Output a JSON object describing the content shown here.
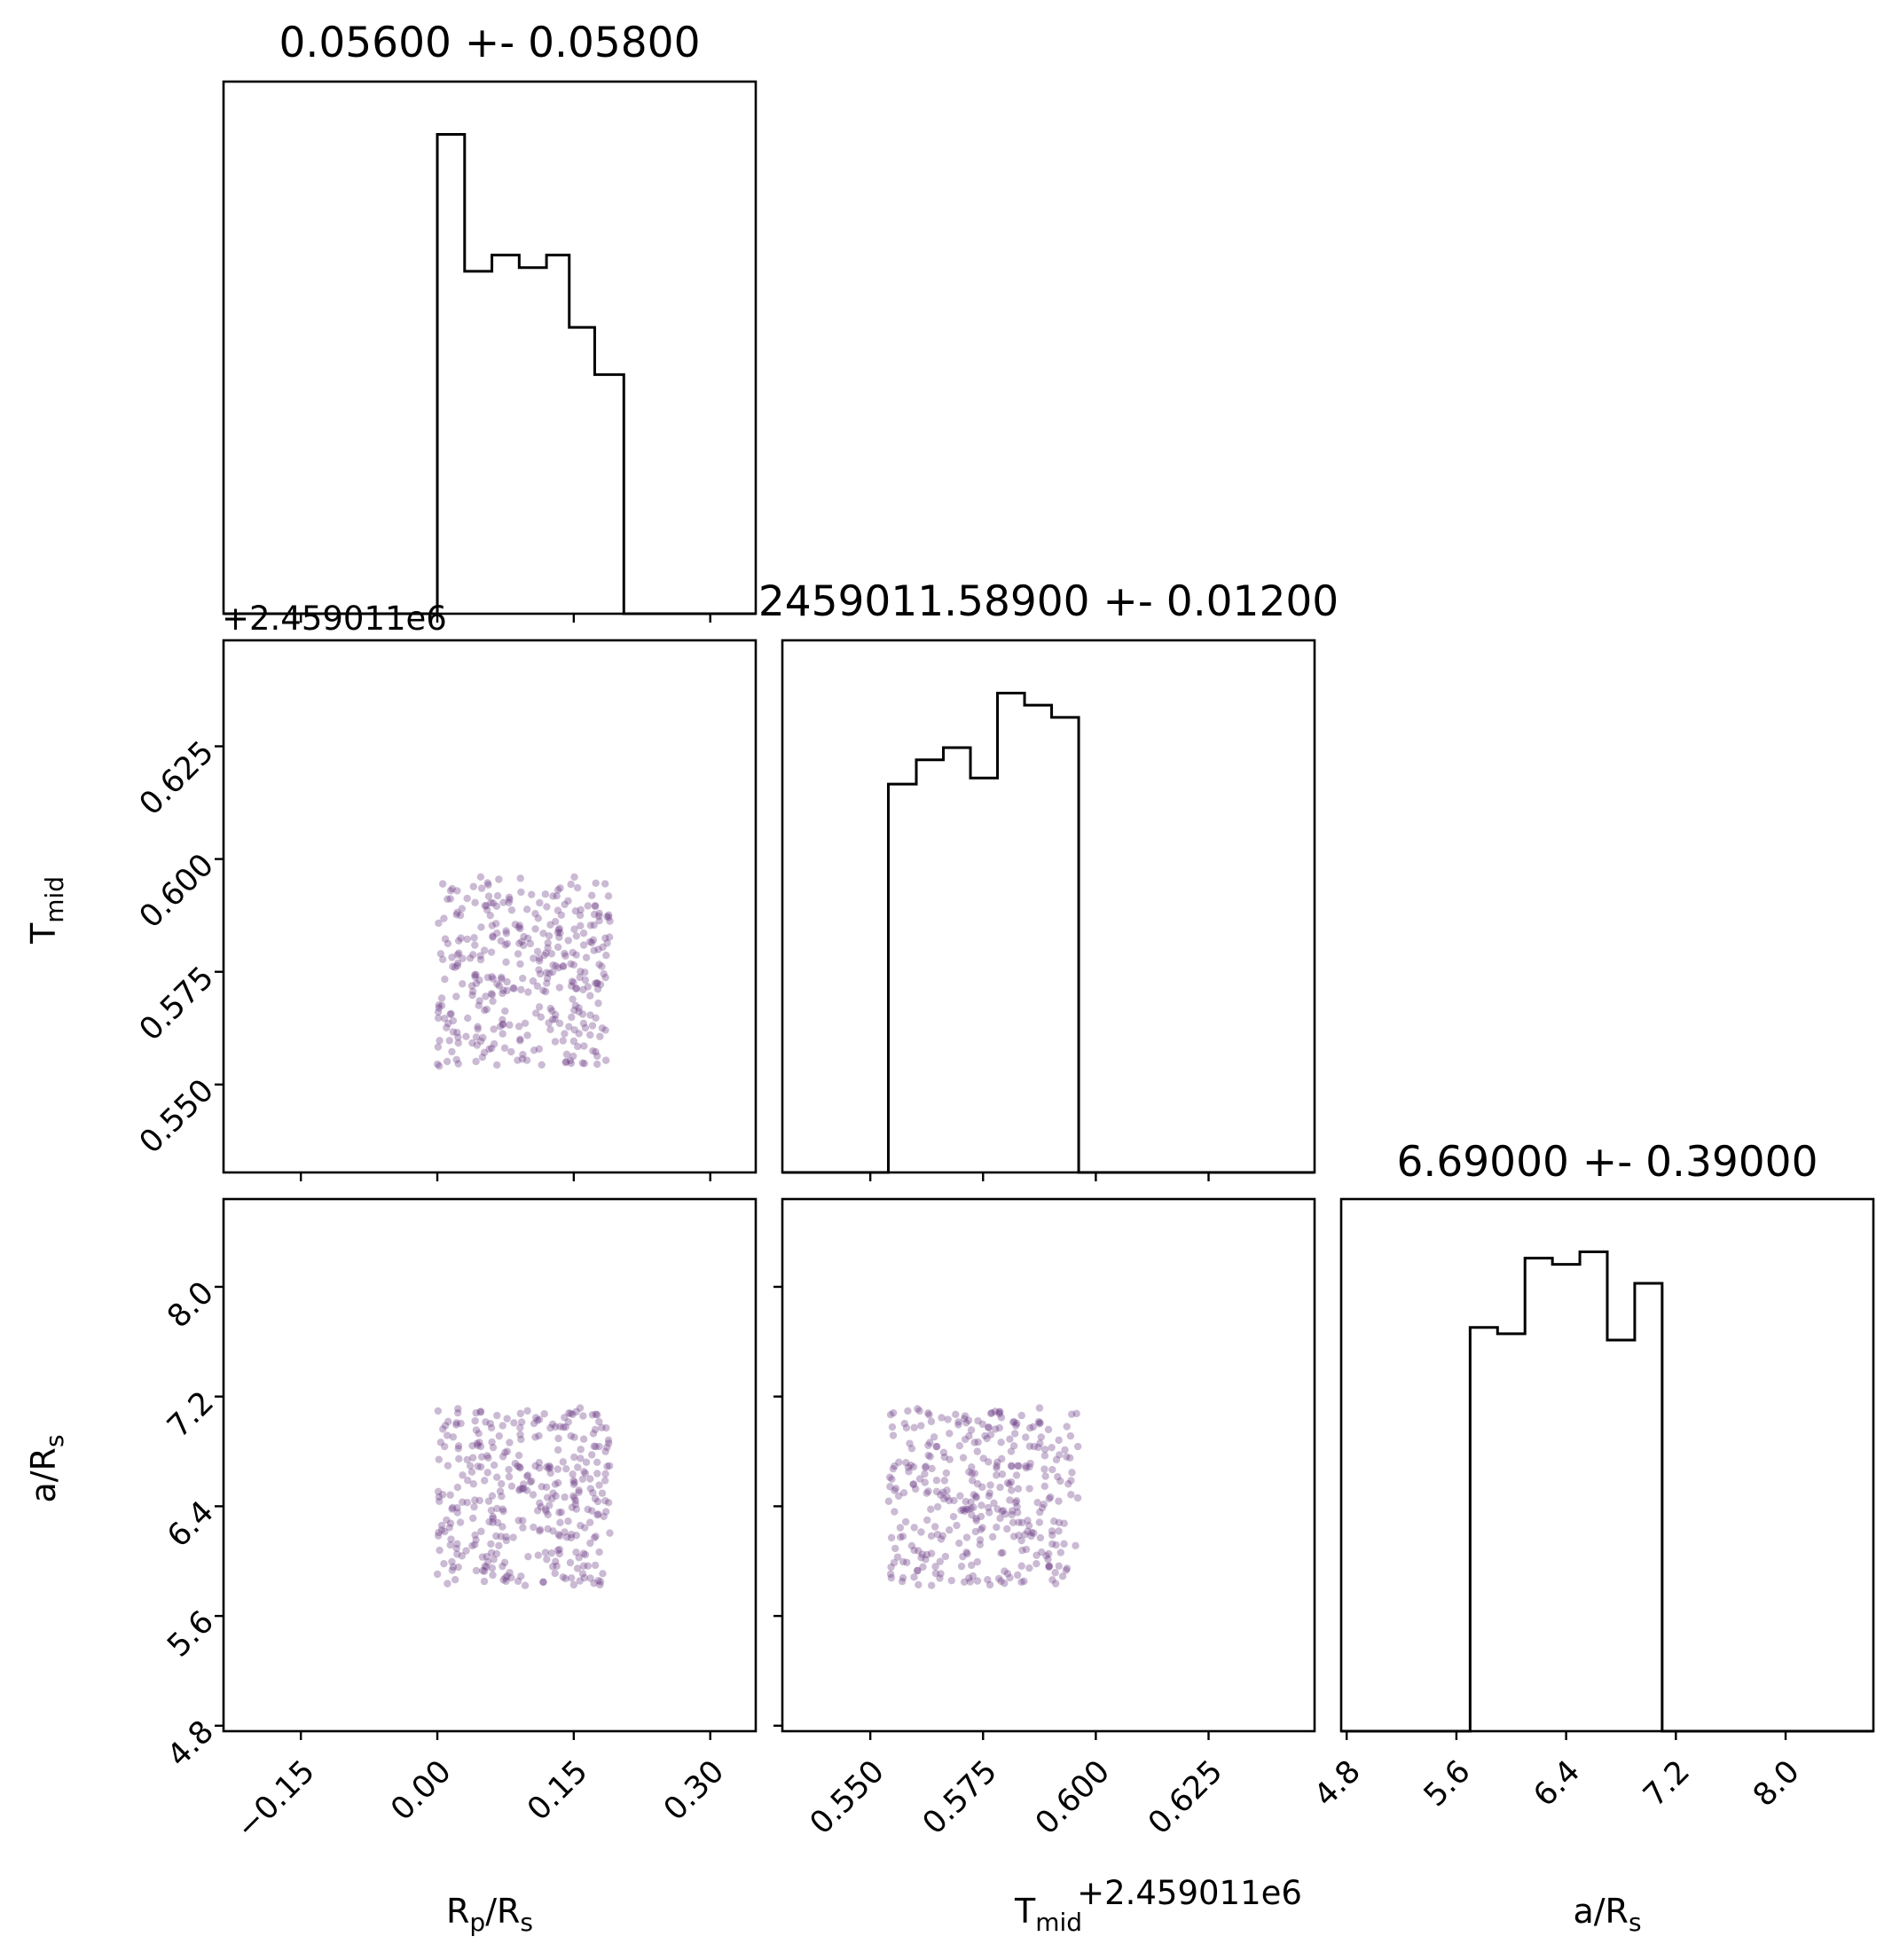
{
  "chart_data": {
    "type": "corner",
    "parameters": [
      {
        "key": "rprs",
        "label_main": "R",
        "label_sub1": "p",
        "label_mid": "/R",
        "label_sub2": "s",
        "title": "0.05600 +- 0.05800",
        "range": [
          -0.235,
          0.35
        ],
        "ticks": [
          -0.15,
          0.0,
          0.15,
          0.3
        ],
        "tick_labels": [
          "−0.15",
          "0.00",
          "0.15",
          "0.30"
        ],
        "offset_text": "",
        "hist_bins": [
          0.0,
          0.03,
          0.06,
          0.09,
          0.12,
          0.145,
          0.173,
          0.205
        ],
        "hist_counts": [
          38.5,
          27.5,
          28.8,
          27.8,
          28.8,
          23.0,
          19.2
        ]
      },
      {
        "key": "tmid",
        "label_main": "T",
        "label_sub1": "mid",
        "label_mid": "",
        "label_sub2": "",
        "title": "2459011.58900 +- 0.01200",
        "range": [
          0.5305,
          0.6485
        ],
        "ticks": [
          0.55,
          0.575,
          0.6,
          0.625
        ],
        "tick_labels": [
          "0.550",
          "0.575",
          "0.600",
          "0.625"
        ],
        "offset_text": "+2.459011e6",
        "hist_bins": [
          0.554,
          0.5602,
          0.5662,
          0.5722,
          0.5782,
          0.5842,
          0.5902,
          0.5962
        ],
        "hist_counts": [
          32.0,
          34.0,
          35.0,
          32.5,
          39.5,
          38.5,
          37.5
        ]
      },
      {
        "key": "ars",
        "label_main": "a/R",
        "label_sub1": "s",
        "label_mid": "",
        "label_sub2": "",
        "title": "6.69000 +- 0.39000",
        "range": [
          4.76,
          8.64
        ],
        "ticks": [
          4.8,
          5.6,
          6.4,
          7.2,
          8.0
        ],
        "tick_labels": [
          "4.8",
          "5.6",
          "6.4",
          "7.2",
          "8.0"
        ],
        "offset_text": "",
        "hist_bins": [
          5.7,
          5.9,
          6.1,
          6.3,
          6.5,
          6.7,
          6.9,
          7.1
        ],
        "hist_counts": [
          32.0,
          31.5,
          37.5,
          37.0,
          38.0,
          31.0,
          35.5
        ]
      }
    ],
    "scatter": {
      "n_points": 350,
      "color": "#6b3a85",
      "alpha": 0.35,
      "sample_ranges": {
        "rprs": [
          0.0,
          0.19
        ],
        "tmid": [
          0.554,
          0.5962
        ],
        "ars": [
          5.82,
          7.12
        ]
      }
    }
  }
}
